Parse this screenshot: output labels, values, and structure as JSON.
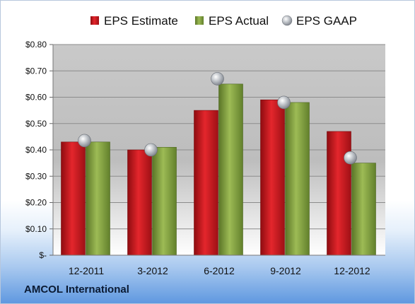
{
  "company": "AMCOL International",
  "colors": {
    "estimate": "#c8141c",
    "actual": "#7f9e3a",
    "gaap": "#a9aeb5"
  },
  "chart_data": {
    "type": "bar",
    "categories": [
      "12-2011",
      "3-2012",
      "6-2012",
      "9-2012",
      "12-2012"
    ],
    "series": [
      {
        "name": "EPS Estimate",
        "values": [
          0.43,
          0.4,
          0.55,
          0.59,
          0.47
        ]
      },
      {
        "name": "EPS Actual",
        "values": [
          0.43,
          0.41,
          0.65,
          0.58,
          0.35
        ]
      },
      {
        "name": "EPS GAAP",
        "values": [
          0.435,
          0.4,
          0.67,
          0.58,
          0.37
        ]
      }
    ],
    "y_ticks": [
      "$-",
      "$0.10",
      "$0.20",
      "$0.30",
      "$0.40",
      "$0.50",
      "$0.60",
      "$0.70",
      "$0.80"
    ],
    "ylim": [
      0,
      0.8
    ],
    "grid": true,
    "legend_position": "top"
  }
}
